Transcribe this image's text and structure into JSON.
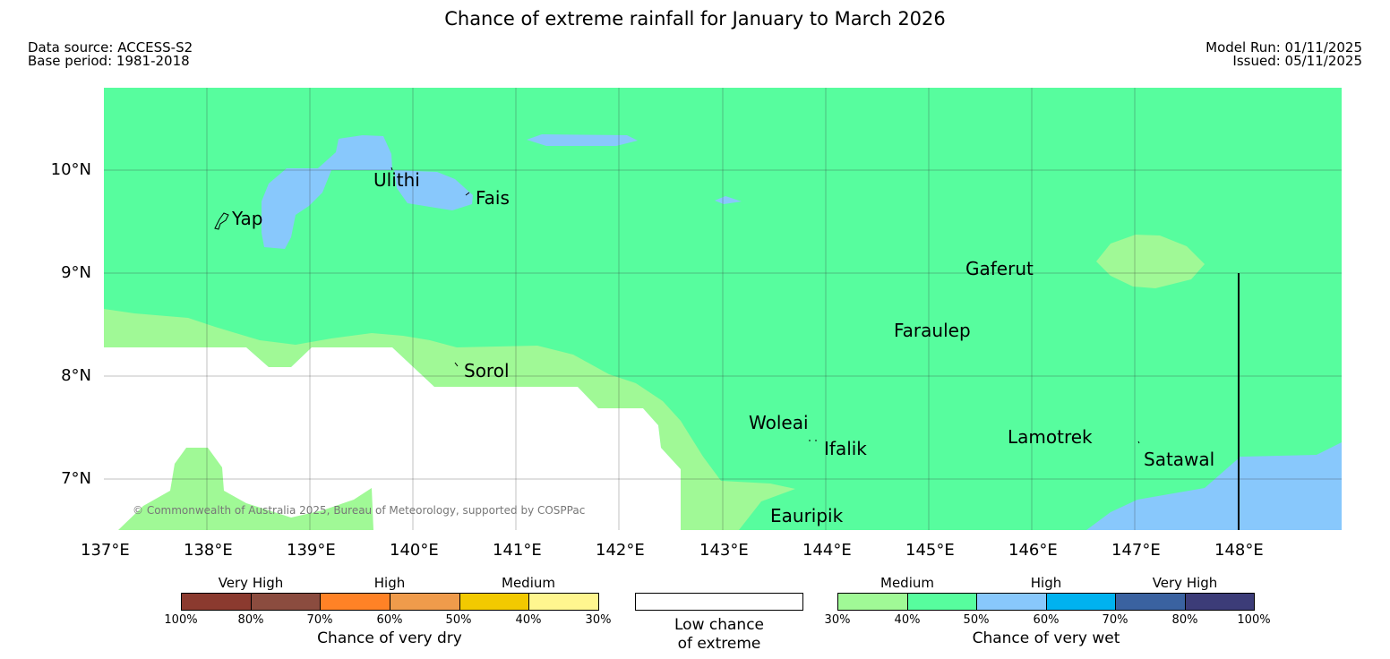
{
  "title": "Chance of extreme rainfall for January to March 2026",
  "meta": {
    "data_source": "Data source: ACCESS-S2",
    "base_period": "Base period: 1981-2018",
    "model_run": "Model Run: 01/11/2025",
    "issued": "Issued: 05/11/2025"
  },
  "map": {
    "lon_labels": [
      "137°E",
      "138°E",
      "139°E",
      "140°E",
      "141°E",
      "142°E",
      "143°E",
      "144°E",
      "145°E",
      "146°E",
      "147°E",
      "148°E"
    ],
    "lat_labels": [
      "10°N",
      "9°N",
      "8°N",
      "7°N"
    ],
    "places": {
      "ulithi": "Ulithi",
      "fais": "Fais",
      "yap": "Yap",
      "gaferut": "Gaferut",
      "faraulep": "Faraulep",
      "sorol": "Sorol",
      "woleai": "Woleai",
      "ifalik": "Ifalik",
      "lamotrek": "Lamotrek",
      "satawal": "Satawal",
      "eauripik": "Eauripik"
    },
    "copyright": "© Commonwealth of Australia 2025, Bureau of Meteorology, supported by COSPPac",
    "colors": {
      "low": "#ffffff",
      "wet_medium_30": "#a0f996",
      "wet_medium_40": "#57fd9e",
      "wet_high_50": "#88c8fc"
    }
  },
  "legend": {
    "dry": {
      "categories": [
        "Very High",
        "High",
        "Medium"
      ],
      "ticks": [
        "100%",
        "80%",
        "70%",
        "60%",
        "50%",
        "40%",
        "30%"
      ],
      "colors": [
        "#8b3a2f",
        "#8b4c3f",
        "#ff8226",
        "#ef9b4b",
        "#f2c900",
        "#fff68f"
      ],
      "caption": "Chance of very dry"
    },
    "low": {
      "caption_line1": "Low chance",
      "caption_line2": "of extreme",
      "color": "#ffffff"
    },
    "wet": {
      "categories": [
        "Medium",
        "High",
        "Very High"
      ],
      "ticks": [
        "30%",
        "40%",
        "50%",
        "60%",
        "70%",
        "80%",
        "100%"
      ],
      "colors": [
        "#a0f996",
        "#57fd9e",
        "#88c8fc",
        "#00b2ef",
        "#3a62a0",
        "#3c3c78"
      ],
      "caption": "Chance of very wet"
    }
  }
}
